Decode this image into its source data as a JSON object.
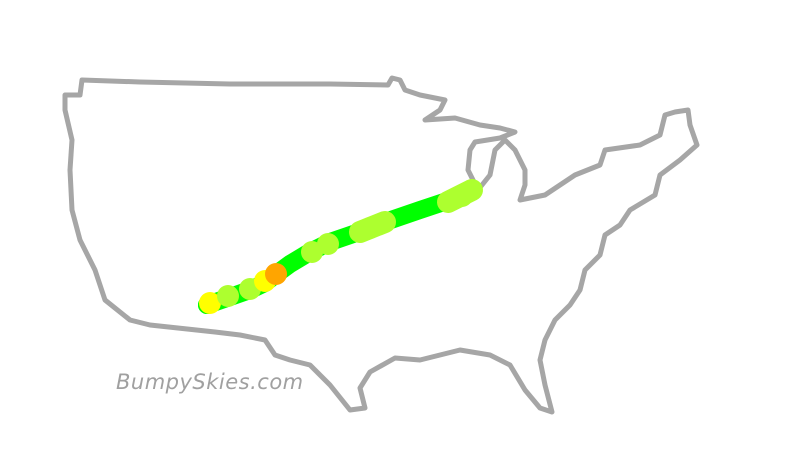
{
  "brand": {
    "text": "BumpySkies.com"
  },
  "map": {
    "region": "contiguous-united-states",
    "outline_color": "#a6a6a6",
    "route_base_color": "#00ff00"
  },
  "turbulence_legend_colors": {
    "smooth": "#00ff00",
    "light": "#adff2f",
    "moderate": "#ffff00",
    "heavy": "#ffa500"
  },
  "route_segments": [
    {
      "level": "smooth"
    },
    {
      "level": "moderate"
    },
    {
      "level": "light"
    },
    {
      "level": "light"
    },
    {
      "level": "moderate"
    },
    {
      "level": "heavy"
    },
    {
      "level": "light"
    },
    {
      "level": "light"
    },
    {
      "level": "light"
    },
    {
      "level": "light"
    }
  ]
}
